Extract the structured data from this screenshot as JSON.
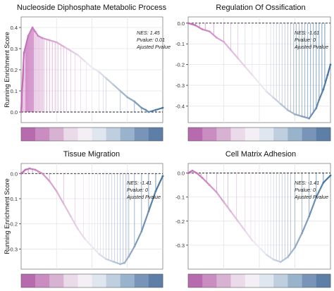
{
  "figure": {
    "ylabel": "Running Enrichment Score",
    "colors": {
      "pink": "#c266b4",
      "blue": "#3f6e9e",
      "light": "#f1eef4",
      "grid": "#e4e4e4",
      "dash": "#222222"
    }
  },
  "chart_data": [
    {
      "type": "line",
      "title": "Nucleoside Diphosphate Metabolic Process",
      "ylabel": "Running Enrichment Score",
      "ylim": [
        -0.05,
        0.45
      ],
      "yticks": [
        0.0,
        0.1,
        0.2,
        0.3,
        0.4
      ],
      "ytick_labels": [
        "0.0",
        "0.1",
        "0.2",
        "0.3",
        "0.4"
      ],
      "grid": true,
      "stats": {
        "nes": "NES: 1.45",
        "pvalue": "Pvalue: 0.01",
        "adjusted": "Ajusted Pvalue"
      },
      "series": [
        {
          "x": [
            0,
            0.02,
            0.05,
            0.08,
            0.1,
            0.12,
            0.15,
            0.2,
            0.25,
            0.3,
            0.35,
            0.4,
            0.45,
            0.5,
            0.55,
            0.6,
            0.65,
            0.7,
            0.75,
            0.8,
            0.85,
            0.88,
            0.9,
            0.95,
            1.0
          ],
          "values": [
            0.0,
            0.28,
            0.36,
            0.4,
            0.38,
            0.36,
            0.35,
            0.34,
            0.33,
            0.31,
            0.29,
            0.27,
            0.24,
            0.21,
            0.19,
            0.16,
            0.13,
            0.1,
            0.07,
            0.05,
            0.02,
            0.01,
            0.0,
            0.01,
            0.02
          ]
        }
      ],
      "hits": [
        0.01,
        0.02,
        0.03,
        0.035,
        0.04,
        0.045,
        0.05,
        0.055,
        0.06,
        0.065,
        0.07,
        0.075,
        0.08,
        0.085,
        0.09,
        0.1,
        0.11,
        0.12,
        0.13,
        0.14,
        0.15,
        0.16,
        0.18,
        0.2,
        0.22,
        0.24,
        0.26,
        0.28,
        0.3,
        0.32,
        0.35,
        0.38,
        0.42,
        0.46,
        0.5,
        0.55,
        0.58,
        0.6,
        0.7,
        0.8,
        0.85,
        0.9,
        0.95
      ],
      "ranking_colors": [
        "#b86aaf",
        "#c98dc1",
        "#d8b2d3",
        "#ebdaea",
        "#f4eff4",
        "#dfe6ef",
        "#bfcfe0",
        "#9ab3cd",
        "#7895b8",
        "#5c7ea7"
      ]
    },
    {
      "type": "line",
      "title": "Regulation Of Ossification",
      "ylabel": "",
      "ylim": [
        -0.48,
        0.03
      ],
      "yticks": [
        0.0,
        -0.1,
        -0.2,
        -0.3,
        -0.4
      ],
      "ytick_labels": [
        "0.0",
        "-0.1",
        "-0.2",
        "-0.3",
        "-0.4"
      ],
      "grid": true,
      "stats": {
        "nes": "NES: -1.61",
        "pvalue": "Pvalue: 0",
        "adjusted": "Ajusted Pvalue"
      },
      "series": [
        {
          "x": [
            0,
            0.05,
            0.1,
            0.15,
            0.2,
            0.25,
            0.3,
            0.35,
            0.4,
            0.45,
            0.5,
            0.55,
            0.6,
            0.65,
            0.7,
            0.75,
            0.8,
            0.85,
            0.9,
            0.92,
            0.95,
            0.98,
            1.0
          ],
          "values": [
            0.0,
            -0.01,
            -0.03,
            -0.04,
            -0.07,
            -0.09,
            -0.13,
            -0.17,
            -0.21,
            -0.25,
            -0.29,
            -0.33,
            -0.36,
            -0.39,
            -0.42,
            -0.44,
            -0.45,
            -0.46,
            -0.41,
            -0.37,
            -0.32,
            -0.25,
            -0.2
          ]
        }
      ],
      "hits": [
        0.02,
        0.05,
        0.08,
        0.12,
        0.18,
        0.25,
        0.3,
        0.35,
        0.4,
        0.45,
        0.5,
        0.55,
        0.58,
        0.6,
        0.62,
        0.64,
        0.66,
        0.68,
        0.7,
        0.72,
        0.74,
        0.76,
        0.78,
        0.8,
        0.82,
        0.84,
        0.86,
        0.88,
        0.9,
        0.92,
        0.94,
        0.96
      ],
      "ranking_colors": [
        "#b86aaf",
        "#c98dc1",
        "#d8b2d3",
        "#ebdaea",
        "#f4eff4",
        "#dfe6ef",
        "#bfcfe0",
        "#9ab3cd",
        "#7895b8",
        "#5c7ea7"
      ]
    },
    {
      "type": "line",
      "title": "Tissue Migration",
      "ylabel": "Running Enrichment Score",
      "ylim": [
        -0.38,
        0.04
      ],
      "yticks": [
        0.0,
        -0.1,
        -0.2,
        -0.3
      ],
      "ytick_labels": [
        "0.0",
        "-0.1",
        "-0.2",
        "-0.3"
      ],
      "grid": true,
      "stats": {
        "nes": "NES: -1.41",
        "pvalue": "Pvalue: 0",
        "adjusted": "Ajusted Pvalue"
      },
      "series": [
        {
          "x": [
            0,
            0.03,
            0.06,
            0.1,
            0.15,
            0.2,
            0.25,
            0.3,
            0.35,
            0.4,
            0.45,
            0.5,
            0.55,
            0.6,
            0.65,
            0.7,
            0.73,
            0.76,
            0.8,
            0.85,
            0.9,
            0.95,
            1.0
          ],
          "values": [
            0.0,
            0.015,
            0.02,
            0.015,
            0.0,
            -0.03,
            -0.07,
            -0.12,
            -0.17,
            -0.22,
            -0.26,
            -0.29,
            -0.32,
            -0.34,
            -0.35,
            -0.36,
            -0.355,
            -0.33,
            -0.29,
            -0.23,
            -0.15,
            -0.07,
            -0.01
          ]
        }
      ],
      "hits": [
        0.02,
        0.05,
        0.08,
        0.12,
        0.2,
        0.3,
        0.38,
        0.44,
        0.48,
        0.5,
        0.52,
        0.54,
        0.56,
        0.58,
        0.6,
        0.62,
        0.64,
        0.66,
        0.68,
        0.7,
        0.72,
        0.74,
        0.76,
        0.8,
        0.85,
        0.9,
        0.95
      ],
      "ranking_colors": [
        "#b86aaf",
        "#c98dc1",
        "#d8b2d3",
        "#ebdaea",
        "#f4eff4",
        "#dfe6ef",
        "#bfcfe0",
        "#9ab3cd",
        "#7895b8",
        "#5c7ea7"
      ]
    },
    {
      "type": "line",
      "title": "Cell Matrix Adhesion",
      "ylabel": "",
      "ylim": [
        -0.4,
        0.04
      ],
      "yticks": [
        0.0,
        -0.1,
        -0.2,
        -0.3
      ],
      "ytick_labels": [
        "0.0",
        "-0.1",
        "-0.2",
        "-0.3"
      ],
      "grid": true,
      "stats": {
        "nes": "NES: -1.41",
        "pvalue": "Pvalue: 0",
        "adjusted": "Ajusted Pvalue"
      },
      "series": [
        {
          "x": [
            0,
            0.03,
            0.06,
            0.1,
            0.15,
            0.2,
            0.25,
            0.3,
            0.35,
            0.4,
            0.45,
            0.5,
            0.55,
            0.6,
            0.65,
            0.7,
            0.75,
            0.8,
            0.85,
            0.9,
            0.95,
            1.0
          ],
          "values": [
            0.0,
            0.01,
            0.0,
            -0.02,
            -0.05,
            -0.08,
            -0.12,
            -0.16,
            -0.2,
            -0.24,
            -0.28,
            -0.31,
            -0.34,
            -0.36,
            -0.37,
            -0.35,
            -0.31,
            -0.25,
            -0.18,
            -0.1,
            -0.04,
            -0.01
          ]
        }
      ],
      "hits": [
        0.02,
        0.05,
        0.09,
        0.13,
        0.2,
        0.28,
        0.34,
        0.4,
        0.44,
        0.47,
        0.5,
        0.52,
        0.54,
        0.56,
        0.58,
        0.6,
        0.62,
        0.64,
        0.66,
        0.68,
        0.7,
        0.72,
        0.75,
        0.8,
        0.85,
        0.9,
        0.95
      ],
      "ranking_colors": [
        "#b86aaf",
        "#c98dc1",
        "#d8b2d3",
        "#ebdaea",
        "#f4eff4",
        "#dfe6ef",
        "#bfcfe0",
        "#9ab3cd",
        "#7895b8",
        "#5c7ea7"
      ]
    }
  ]
}
